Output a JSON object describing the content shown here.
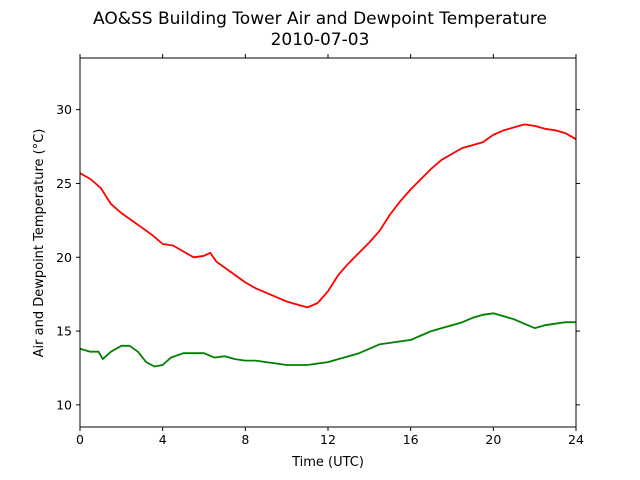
{
  "chart_data": {
    "type": "line",
    "title": "AO&SS Building Tower Air and Dewpoint Temperature",
    "subtitle": "2010-07-03",
    "xlabel": "Time (UTC)",
    "ylabel": "Air and Dewpoint Temperature (°C)",
    "xlim": [
      0,
      24
    ],
    "ylim": [
      8.5,
      33.5
    ],
    "xticks": [
      0,
      4,
      8,
      12,
      16,
      20,
      24
    ],
    "yticks": [
      10,
      15,
      20,
      25,
      30
    ],
    "grid": false,
    "legend": "none",
    "series": [
      {
        "color": "#ff0000",
        "x": [
          0,
          0.5,
          1,
          1.5,
          2,
          2.5,
          3,
          3.5,
          4,
          4.5,
          5,
          5.5,
          6,
          6.3,
          6.6,
          7,
          7.5,
          8,
          8.5,
          9,
          9.5,
          10,
          10.5,
          11,
          11.5,
          12,
          12.5,
          13,
          13.5,
          14,
          14.5,
          15,
          15.5,
          16,
          16.5,
          17,
          17.5,
          18,
          18.5,
          19,
          19.5,
          20,
          20.5,
          21,
          21.5,
          22,
          22.5,
          23,
          23.5,
          24
        ],
        "y": [
          25.7,
          25.3,
          24.7,
          23.6,
          23.0,
          22.5,
          22.0,
          21.5,
          20.9,
          20.8,
          20.4,
          20.0,
          20.1,
          20.3,
          19.7,
          19.3,
          18.8,
          18.3,
          17.9,
          17.6,
          17.3,
          17.0,
          16.8,
          16.6,
          16.9,
          17.7,
          18.8,
          19.6,
          20.3,
          21.0,
          21.8,
          22.9,
          23.8,
          24.6,
          25.3,
          26.0,
          26.6,
          27.0,
          27.4,
          27.6,
          27.8,
          28.3,
          28.6,
          28.8,
          29.0,
          28.9,
          28.7,
          28.6,
          28.4,
          28.0
        ]
      },
      {
        "color": "#008000",
        "x": [
          0,
          0.5,
          0.9,
          1.1,
          1.5,
          2,
          2.4,
          2.8,
          3.2,
          3.6,
          4,
          4.4,
          5,
          5.5,
          6,
          6.5,
          7,
          7.5,
          8,
          8.5,
          9,
          9.5,
          10,
          10.5,
          11,
          11.5,
          12,
          12.5,
          13,
          13.5,
          14,
          14.5,
          15,
          15.5,
          16,
          16.5,
          17,
          17.5,
          18,
          18.5,
          19,
          19.5,
          20,
          20.5,
          21,
          21.5,
          22,
          22.5,
          23,
          23.5,
          24
        ],
        "y": [
          13.8,
          13.6,
          13.6,
          13.1,
          13.6,
          14.0,
          14.0,
          13.6,
          12.9,
          12.6,
          12.7,
          13.2,
          13.5,
          13.5,
          13.5,
          13.2,
          13.3,
          13.1,
          13.0,
          13.0,
          12.9,
          12.8,
          12.7,
          12.7,
          12.7,
          12.8,
          12.9,
          13.1,
          13.3,
          13.5,
          13.8,
          14.1,
          14.2,
          14.3,
          14.4,
          14.7,
          15.0,
          15.2,
          15.4,
          15.6,
          15.9,
          16.1,
          16.2,
          16.0,
          15.8,
          15.5,
          15.2,
          15.4,
          15.5,
          15.6,
          15.6
        ]
      }
    ]
  }
}
